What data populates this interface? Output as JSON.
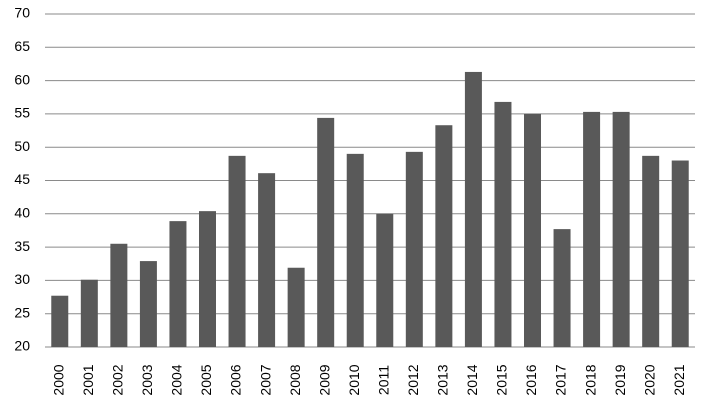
{
  "chart_data": {
    "type": "bar",
    "categories": [
      "2000",
      "2001",
      "2002",
      "2003",
      "2004",
      "2005",
      "2006",
      "2007",
      "2008",
      "2009",
      "2010",
      "2011",
      "2012",
      "2013",
      "2014",
      "2015",
      "2016",
      "2017",
      "2018",
      "2019",
      "2020",
      "2021"
    ],
    "values": [
      27.7,
      30.1,
      35.5,
      32.9,
      38.9,
      40.4,
      48.7,
      46.1,
      31.9,
      54.4,
      49.0,
      40.0,
      49.3,
      53.3,
      61.3,
      56.8,
      55.0,
      37.7,
      55.3,
      55.3,
      48.7,
      48.0
    ],
    "color": "#595959",
    "ylim": [
      20,
      70
    ],
    "yticks": [
      20,
      25,
      30,
      35,
      40,
      45,
      50,
      55,
      60,
      65,
      70
    ],
    "grid": true
  }
}
